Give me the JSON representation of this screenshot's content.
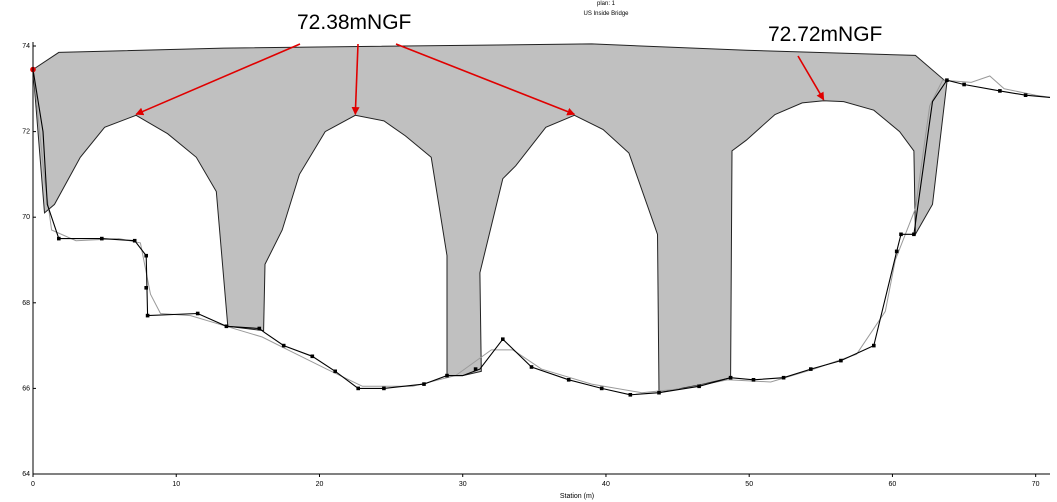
{
  "chart_data": {
    "type": "line",
    "title": "US Inside Bridge",
    "xlabel": "Station (m)",
    "ylabel": "",
    "xlim": [
      0,
      71
    ],
    "ylim": [
      64,
      74
    ],
    "x_ticks": [
      0,
      10,
      20,
      30,
      40,
      50,
      60,
      70
    ],
    "y_ticks": [
      64,
      66,
      68,
      70,
      72,
      74
    ],
    "colors": {
      "deck": "#c0c0c0",
      "ground": "#000000",
      "ground_alt": "#9a9a9a",
      "callout": "#e00000",
      "bank": "#e00000"
    },
    "deck_outline": [
      [
        0,
        73.45
      ],
      [
        1.8,
        73.85
      ],
      [
        13.3,
        73.95
      ],
      [
        39.0,
        74.05
      ],
      [
        49.8,
        73.9
      ],
      [
        61.6,
        73.78
      ],
      [
        63.8,
        73.15
      ],
      [
        62.8,
        70.3
      ],
      [
        61.6,
        69.6
      ],
      [
        61.5,
        71.55
      ],
      [
        60.5,
        72.0
      ],
      [
        58.7,
        72.5
      ],
      [
        56.6,
        72.7
      ],
      [
        55.2,
        72.72
      ],
      [
        53.7,
        72.67
      ],
      [
        51.8,
        72.4
      ],
      [
        49.8,
        71.8
      ],
      [
        48.8,
        71.55
      ],
      [
        48.7,
        66.25
      ],
      [
        46.8,
        66.1
      ],
      [
        43.7,
        65.9
      ],
      [
        43.6,
        69.6
      ],
      [
        41.6,
        71.5
      ],
      [
        39.8,
        72.05
      ],
      [
        37.8,
        72.38
      ],
      [
        35.8,
        72.1
      ],
      [
        33.7,
        71.2
      ],
      [
        32.8,
        70.9
      ],
      [
        31.2,
        68.7
      ],
      [
        31.3,
        66.4
      ],
      [
        30.0,
        66.3
      ],
      [
        28.9,
        66.3
      ],
      [
        28.9,
        69.1
      ],
      [
        27.8,
        71.4
      ],
      [
        26.0,
        71.9
      ],
      [
        24.5,
        72.25
      ],
      [
        22.5,
        72.38
      ],
      [
        20.4,
        72.0
      ],
      [
        18.6,
        71.0
      ],
      [
        17.4,
        69.7
      ],
      [
        16.2,
        68.9
      ],
      [
        16.1,
        67.35
      ],
      [
        13.6,
        67.45
      ],
      [
        12.8,
        70.6
      ],
      [
        11.4,
        71.4
      ],
      [
        9.4,
        71.95
      ],
      [
        7.2,
        72.38
      ],
      [
        5.0,
        72.1
      ],
      [
        3.3,
        71.4
      ],
      [
        1.5,
        70.3
      ],
      [
        0.8,
        70.1
      ],
      [
        0,
        73.45
      ]
    ],
    "ground_black": [
      [
        0,
        73.45
      ],
      [
        0.7,
        72.0
      ],
      [
        1.0,
        70.3
      ],
      [
        1.8,
        69.5
      ],
      [
        4.8,
        69.5
      ],
      [
        7.1,
        69.45
      ],
      [
        7.9,
        69.1
      ],
      [
        8.0,
        67.7
      ],
      [
        11.5,
        67.75
      ],
      [
        13.5,
        67.45
      ],
      [
        15.8,
        67.4
      ],
      [
        16.2,
        67.3
      ],
      [
        17.5,
        67.0
      ],
      [
        19.5,
        66.75
      ],
      [
        21.1,
        66.4
      ],
      [
        22.7,
        66.0
      ],
      [
        24.5,
        66.0
      ],
      [
        27.3,
        66.1
      ],
      [
        28.9,
        66.3
      ],
      [
        30.0,
        66.3
      ],
      [
        31.2,
        66.45
      ],
      [
        32.8,
        67.15
      ],
      [
        34.8,
        66.5
      ],
      [
        37.4,
        66.2
      ],
      [
        39.7,
        66.0
      ],
      [
        41.7,
        65.85
      ],
      [
        43.7,
        65.9
      ],
      [
        46.5,
        66.05
      ],
      [
        48.7,
        66.25
      ],
      [
        50.3,
        66.2
      ],
      [
        52.4,
        66.25
      ],
      [
        54.3,
        66.45
      ],
      [
        56.4,
        66.65
      ],
      [
        58.7,
        67.0
      ],
      [
        60.3,
        69.2
      ],
      [
        60.6,
        69.6
      ],
      [
        61.5,
        69.6
      ],
      [
        62.8,
        72.7
      ],
      [
        63.8,
        73.2
      ],
      [
        65.0,
        73.1
      ],
      [
        67.5,
        72.95
      ],
      [
        69.3,
        72.85
      ],
      [
        71.0,
        72.8
      ]
    ],
    "ground_gray": [
      [
        0,
        73.5
      ],
      [
        0.8,
        70.9
      ],
      [
        1.3,
        69.7
      ],
      [
        3.0,
        69.45
      ],
      [
        6.0,
        69.5
      ],
      [
        7.5,
        69.4
      ],
      [
        8.2,
        68.2
      ],
      [
        8.9,
        67.75
      ],
      [
        11.0,
        67.7
      ],
      [
        13.0,
        67.5
      ],
      [
        16.0,
        67.2
      ],
      [
        17.8,
        66.9
      ],
      [
        20.5,
        66.45
      ],
      [
        23.0,
        66.05
      ],
      [
        26.5,
        66.05
      ],
      [
        29.5,
        66.3
      ],
      [
        32.0,
        66.9
      ],
      [
        33.5,
        66.9
      ],
      [
        35.5,
        66.45
      ],
      [
        39.0,
        66.1
      ],
      [
        42.5,
        65.9
      ],
      [
        45.5,
        66.0
      ],
      [
        48.5,
        66.2
      ],
      [
        51.5,
        66.15
      ],
      [
        54.5,
        66.45
      ],
      [
        57.5,
        66.8
      ],
      [
        59.5,
        67.8
      ],
      [
        60.2,
        69.0
      ],
      [
        61.6,
        70.2
      ],
      [
        62.6,
        72.6
      ],
      [
        63.5,
        73.2
      ],
      [
        65.5,
        73.15
      ],
      [
        66.8,
        73.3
      ],
      [
        67.8,
        73.0
      ],
      [
        70.0,
        72.85
      ],
      [
        71.0,
        72.8
      ]
    ],
    "ground_markers": [
      [
        1.8,
        69.5
      ],
      [
        4.8,
        69.5
      ],
      [
        7.1,
        69.45
      ],
      [
        7.9,
        69.1
      ],
      [
        7.9,
        68.35
      ],
      [
        8.0,
        67.7
      ],
      [
        11.5,
        67.75
      ],
      [
        13.5,
        67.45
      ],
      [
        15.8,
        67.4
      ],
      [
        17.5,
        67.0
      ],
      [
        19.5,
        66.75
      ],
      [
        21.1,
        66.4
      ],
      [
        22.7,
        66.0
      ],
      [
        24.5,
        66.0
      ],
      [
        27.3,
        66.1
      ],
      [
        28.9,
        66.3
      ],
      [
        30.9,
        66.45
      ],
      [
        32.8,
        67.15
      ],
      [
        34.8,
        66.5
      ],
      [
        37.4,
        66.2
      ],
      [
        39.7,
        66.0
      ],
      [
        41.7,
        65.85
      ],
      [
        43.7,
        65.9
      ],
      [
        46.5,
        66.05
      ],
      [
        48.7,
        66.25
      ],
      [
        50.3,
        66.2
      ],
      [
        52.4,
        66.25
      ],
      [
        54.3,
        66.45
      ],
      [
        56.4,
        66.65
      ],
      [
        58.7,
        67.0
      ],
      [
        60.3,
        69.2
      ],
      [
        60.6,
        69.6
      ],
      [
        61.5,
        69.6
      ],
      [
        63.8,
        73.2
      ],
      [
        65.0,
        73.1
      ],
      [
        67.5,
        72.95
      ],
      [
        69.3,
        72.85
      ]
    ],
    "bank_marker": [
      0,
      73.45
    ],
    "annotations": [
      {
        "text": "72.38mNGF",
        "arrow_targets": [
          [
            7.2,
            72.38
          ],
          [
            22.5,
            72.38
          ],
          [
            37.8,
            72.38
          ]
        ]
      },
      {
        "text": "72.72mNGF",
        "arrow_targets": [
          [
            55.2,
            72.72
          ]
        ]
      }
    ]
  }
}
